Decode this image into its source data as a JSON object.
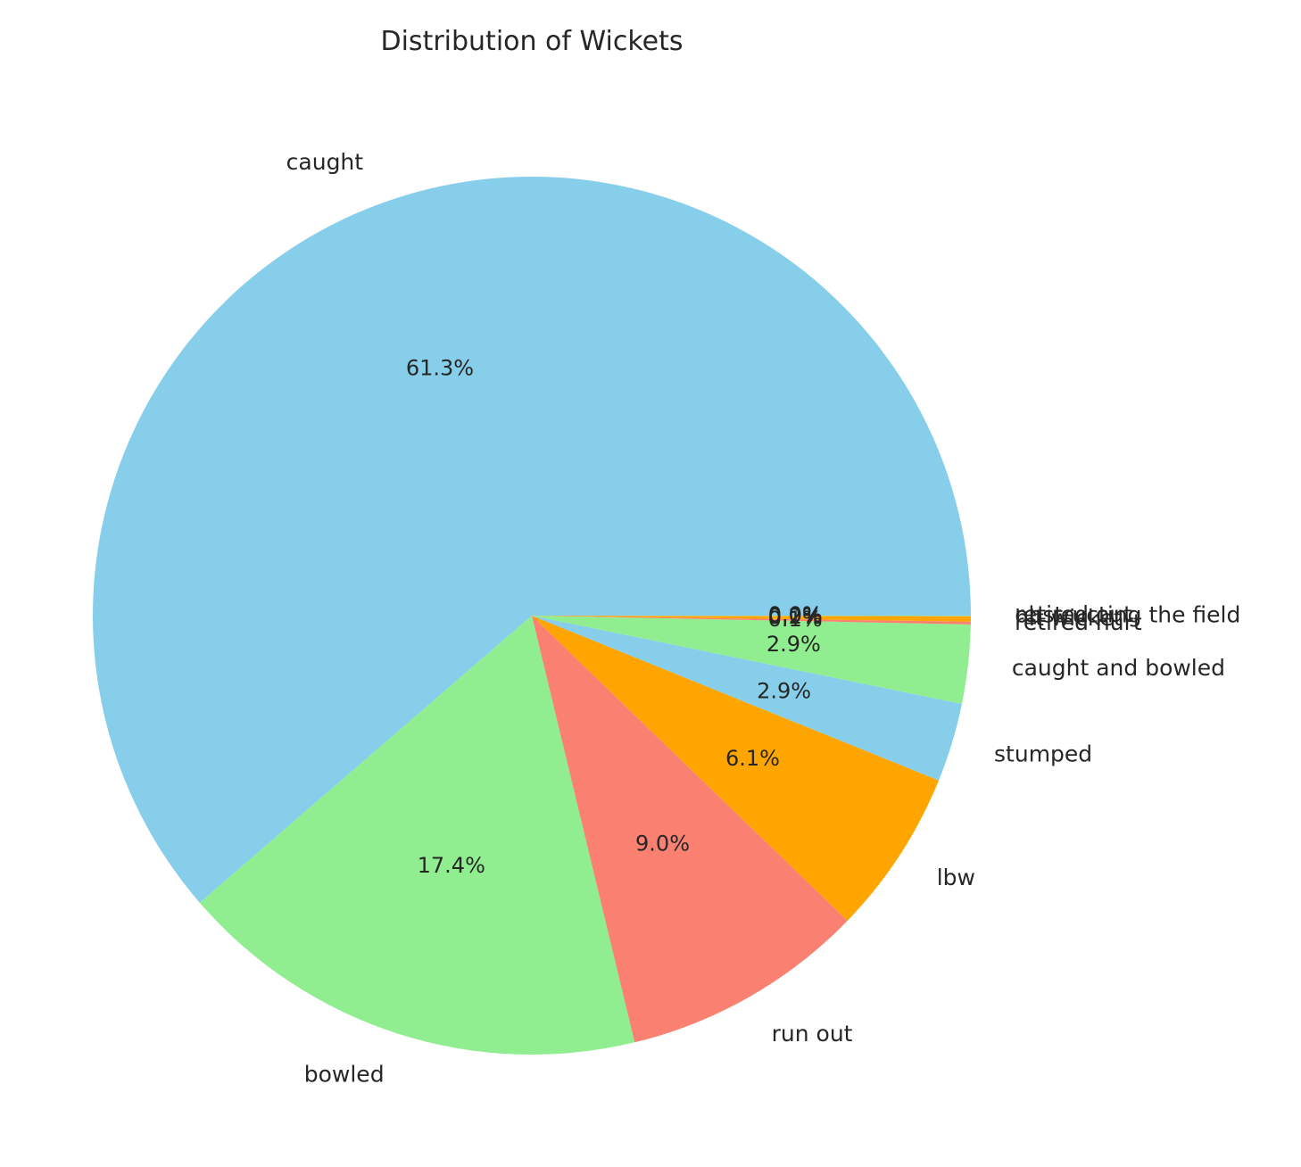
{
  "chart_data": {
    "type": "pie",
    "title": "Distribution of Wickets",
    "start_angle": 0,
    "direction": "counterclockwise",
    "slices": [
      {
        "label": "caught",
        "value": 61.3,
        "pct_label": "61.3%",
        "color": "#87CEEB"
      },
      {
        "label": "bowled",
        "value": 17.4,
        "pct_label": "17.4%",
        "color": "#90EE90"
      },
      {
        "label": "run out",
        "value": 9.0,
        "pct_label": "9.0%",
        "color": "#FA8072"
      },
      {
        "label": "lbw",
        "value": 6.1,
        "pct_label": "6.1%",
        "color": "#FFA500"
      },
      {
        "label": "stumped",
        "value": 2.9,
        "pct_label": "2.9%",
        "color": "#87CEEB"
      },
      {
        "label": "caught and bowled",
        "value": 2.9,
        "pct_label": "2.9%",
        "color": "#90EE90"
      },
      {
        "label": "retired hurt",
        "value": 0.1,
        "pct_label": "0.1%",
        "color": "#FA8072"
      },
      {
        "label": "hit wicket",
        "value": 0.2,
        "pct_label": "0.2%",
        "color": "#FFA500"
      },
      {
        "label": "obstructing the field",
        "value": 0.01,
        "pct_label": "0.0%",
        "color": "#87CEEB"
      },
      {
        "label": "retired out",
        "value": 0.01,
        "pct_label": "0.0%",
        "color": "#90EE90"
      }
    ]
  }
}
